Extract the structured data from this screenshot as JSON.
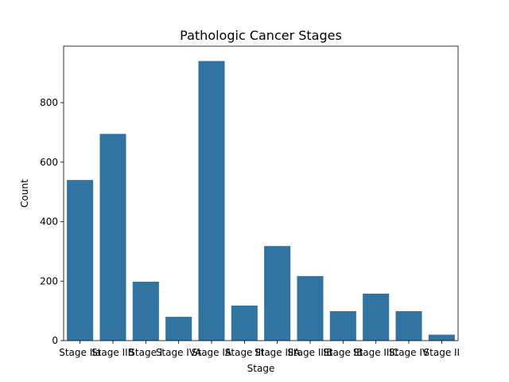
{
  "chart_data": {
    "type": "bar",
    "title": "Pathologic Cancer Stages",
    "xlabel": "Stage",
    "ylabel": "Count",
    "categories": [
      "Stage IIa",
      "Stage IIB",
      "Stage I",
      "Stage IVA",
      "Stage IA",
      "Stage III",
      "Stage IIIA",
      "Stage IIIB",
      "Stage IB",
      "Stage IIIC",
      "Stage IV",
      "Stage II"
    ],
    "values": [
      540,
      695,
      198,
      80,
      940,
      118,
      318,
      217,
      99,
      158,
      99,
      20
    ],
    "ylim": [
      0,
      990
    ],
    "yticks": [
      0,
      200,
      400,
      600,
      800
    ],
    "grid": false,
    "bar_color": "#3274a1"
  }
}
